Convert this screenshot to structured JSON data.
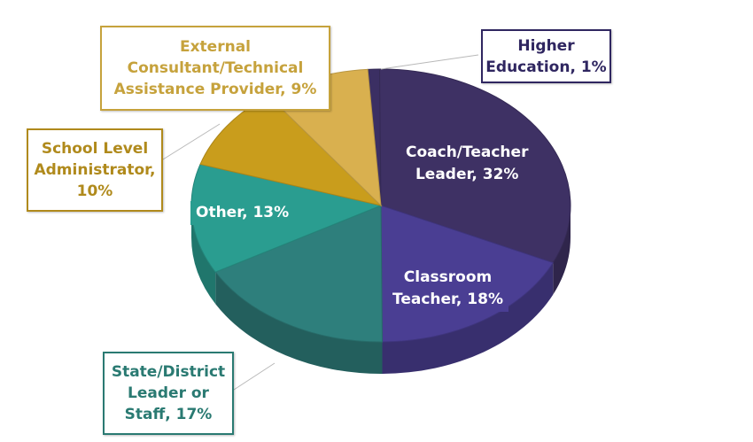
{
  "chart_data": {
    "type": "pie",
    "title": "",
    "slices": [
      {
        "label": "Higher Education, 1%",
        "value": 1,
        "color": "#3b2f63"
      },
      {
        "label": "Coach/Teacher Leader, 32%",
        "value": 32,
        "color": "#3e3164"
      },
      {
        "label": "Classroom Teacher, 18%",
        "value": 18,
        "color": "#4a3e93"
      },
      {
        "label": "State/District Leader or Staff, 17%",
        "value": 17,
        "color": "#2e7f7c"
      },
      {
        "label": "Other, 13%",
        "value": 13,
        "color": "#2a9d90"
      },
      {
        "label": "School Level Administrator, 10%",
        "value": 10,
        "color": "#c99d1c"
      },
      {
        "label": "External Consultant/Technical Assistance Provider, 9%",
        "value": 9,
        "color": "#d9b04f"
      }
    ],
    "labels": {
      "higher_education": "Higher\nEducation, 1%",
      "coach_teacher_leader": "Coach/Teacher\nLeader, 32%",
      "classroom_teacher": "Classroom\nTeacher, 18%",
      "state_district": "State/District\nLeader or\nStaff, 17%",
      "other": "Other, 13%",
      "school_level_admin": "School Level\nAdministrator,\n10%",
      "external_consultant": "External\nConsultant/Technical\nAssistance Provider, 9%"
    },
    "label_colors": {
      "higher_education": "#2f2660",
      "state_district": "#2a7a72",
      "school_level_admin": "#b08a1c",
      "external_consultant": "#c6a23c"
    }
  }
}
